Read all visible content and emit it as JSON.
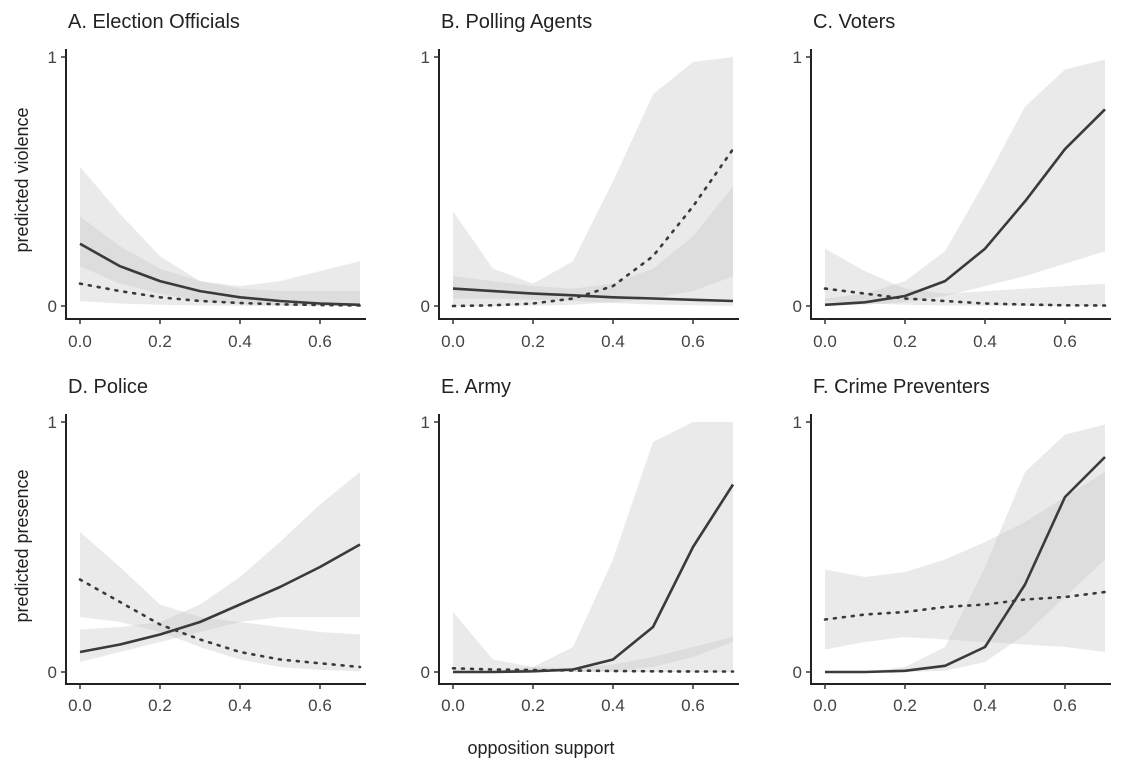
{
  "figure": {
    "ylabel_top": "predicted violence",
    "ylabel_bottom": "predicted presence",
    "xlabel": "opposition support"
  },
  "chart_data": [
    {
      "type": "line",
      "title": "A. Election Officials",
      "xlim": [
        0,
        0.7
      ],
      "ylim": [
        0,
        1
      ],
      "x_ticks": [
        "0.0",
        "0.2",
        "0.4",
        "0.6"
      ],
      "y_ticks": [
        "0",
        "1"
      ],
      "x": [
        0,
        0.1,
        0.2,
        0.3,
        0.4,
        0.5,
        0.6,
        0.7
      ],
      "series": [
        {
          "style": "solid",
          "values": [
            0.25,
            0.16,
            0.1,
            0.06,
            0.035,
            0.02,
            0.01,
            0.005
          ],
          "lower": [
            0.16,
            0.09,
            0.05,
            0.02,
            0.008,
            0.003,
            0.001,
            0.0
          ],
          "upper": [
            0.36,
            0.24,
            0.15,
            0.1,
            0.07,
            0.06,
            0.06,
            0.06
          ]
        },
        {
          "style": "dotted",
          "values": [
            0.09,
            0.06,
            0.035,
            0.02,
            0.012,
            0.007,
            0.004,
            0.002
          ],
          "lower": [
            0.02,
            0.01,
            0.005,
            0.002,
            0.001,
            0.0,
            0.0,
            0.0
          ],
          "upper": [
            0.56,
            0.37,
            0.2,
            0.1,
            0.08,
            0.1,
            0.14,
            0.18
          ]
        }
      ]
    },
    {
      "type": "line",
      "title": "B. Polling Agents",
      "xlim": [
        0,
        0.7
      ],
      "ylim": [
        0,
        1
      ],
      "x_ticks": [
        "0.0",
        "0.2",
        "0.4",
        "0.6"
      ],
      "y_ticks": [
        "0",
        "1"
      ],
      "x": [
        0,
        0.1,
        0.2,
        0.3,
        0.4,
        0.5,
        0.6,
        0.7
      ],
      "series": [
        {
          "style": "solid",
          "values": [
            0.07,
            0.06,
            0.05,
            0.043,
            0.035,
            0.03,
            0.025,
            0.02
          ],
          "lower": [
            0.03,
            0.03,
            0.025,
            0.02,
            0.012,
            0.006,
            0.003,
            0.0
          ],
          "upper": [
            0.12,
            0.1,
            0.08,
            0.07,
            0.09,
            0.15,
            0.28,
            0.48
          ]
        },
        {
          "style": "dotted",
          "values": [
            0.0,
            0.003,
            0.01,
            0.03,
            0.08,
            0.2,
            0.4,
            0.63
          ],
          "lower": [
            0.0,
            0.0,
            0.001,
            0.005,
            0.015,
            0.03,
            0.06,
            0.12
          ],
          "upper": [
            0.38,
            0.15,
            0.09,
            0.18,
            0.5,
            0.85,
            0.98,
            1.0
          ]
        }
      ]
    },
    {
      "type": "line",
      "title": "C. Voters",
      "xlim": [
        0,
        0.7
      ],
      "ylim": [
        0,
        1
      ],
      "x_ticks": [
        "0.0",
        "0.2",
        "0.4",
        "0.6"
      ],
      "y_ticks": [
        "0",
        "1"
      ],
      "x": [
        0,
        0.1,
        0.2,
        0.3,
        0.4,
        0.5,
        0.6,
        0.7
      ],
      "series": [
        {
          "style": "solid",
          "values": [
            0.005,
            0.015,
            0.04,
            0.1,
            0.23,
            0.42,
            0.63,
            0.79
          ],
          "lower": [
            0.0,
            0.005,
            0.015,
            0.04,
            0.08,
            0.12,
            0.17,
            0.22
          ],
          "upper": [
            0.03,
            0.05,
            0.1,
            0.22,
            0.5,
            0.8,
            0.95,
            0.99
          ]
        },
        {
          "style": "dotted",
          "values": [
            0.07,
            0.05,
            0.03,
            0.02,
            0.01,
            0.006,
            0.003,
            0.002
          ],
          "lower": [
            0.02,
            0.01,
            0.005,
            0.002,
            0.001,
            0.0,
            0.0,
            0.0
          ],
          "upper": [
            0.23,
            0.14,
            0.07,
            0.05,
            0.06,
            0.07,
            0.08,
            0.09
          ]
        }
      ]
    },
    {
      "type": "line",
      "title": "D. Police",
      "xlim": [
        0,
        0.7
      ],
      "ylim": [
        0,
        1
      ],
      "x_ticks": [
        "0.0",
        "0.2",
        "0.4",
        "0.6"
      ],
      "y_ticks": [
        "0",
        "1"
      ],
      "x": [
        0,
        0.1,
        0.2,
        0.3,
        0.4,
        0.5,
        0.6,
        0.7
      ],
      "series": [
        {
          "style": "solid",
          "values": [
            0.08,
            0.11,
            0.15,
            0.2,
            0.27,
            0.34,
            0.42,
            0.51
          ],
          "lower": [
            0.04,
            0.08,
            0.12,
            0.16,
            0.2,
            0.22,
            0.22,
            0.22
          ],
          "upper": [
            0.17,
            0.18,
            0.2,
            0.27,
            0.38,
            0.52,
            0.67,
            0.8
          ]
        },
        {
          "style": "dotted",
          "values": [
            0.37,
            0.28,
            0.19,
            0.13,
            0.08,
            0.05,
            0.035,
            0.02
          ],
          "lower": [
            0.22,
            0.2,
            0.16,
            0.1,
            0.05,
            0.02,
            0.008,
            0.003
          ],
          "upper": [
            0.56,
            0.42,
            0.27,
            0.22,
            0.2,
            0.18,
            0.16,
            0.15
          ]
        }
      ]
    },
    {
      "type": "line",
      "title": "E. Army",
      "xlim": [
        0,
        0.7
      ],
      "ylim": [
        0,
        1
      ],
      "x_ticks": [
        "0.0",
        "0.2",
        "0.4",
        "0.6"
      ],
      "y_ticks": [
        "0",
        "1"
      ],
      "x": [
        0,
        0.1,
        0.2,
        0.3,
        0.4,
        0.5,
        0.6,
        0.7
      ],
      "series": [
        {
          "style": "solid",
          "values": [
            0.0,
            0.0,
            0.003,
            0.01,
            0.05,
            0.18,
            0.5,
            0.75
          ],
          "lower": [
            0.0,
            0.0,
            0.0,
            0.0,
            0.005,
            0.02,
            0.06,
            0.12
          ],
          "upper": [
            0.0,
            0.005,
            0.02,
            0.1,
            0.45,
            0.92,
            1.0,
            1.0
          ]
        },
        {
          "style": "dotted",
          "values": [
            0.015,
            0.01,
            0.008,
            0.006,
            0.004,
            0.003,
            0.002,
            0.002
          ],
          "lower": [
            0.0,
            0.0,
            0.0,
            0.0,
            0.0,
            0.0,
            0.0,
            0.0
          ],
          "upper": [
            0.24,
            0.05,
            0.02,
            0.015,
            0.03,
            0.06,
            0.1,
            0.14
          ]
        }
      ]
    },
    {
      "type": "line",
      "title": "F. Crime Preventers",
      "xlim": [
        0,
        0.7
      ],
      "ylim": [
        0,
        1
      ],
      "x_ticks": [
        "0.0",
        "0.2",
        "0.4",
        "0.6"
      ],
      "y_ticks": [
        "0",
        "1"
      ],
      "x": [
        0,
        0.1,
        0.2,
        0.3,
        0.4,
        0.5,
        0.6,
        0.7
      ],
      "series": [
        {
          "style": "solid",
          "values": [
            0.0,
            0.0,
            0.005,
            0.025,
            0.1,
            0.35,
            0.7,
            0.86
          ],
          "lower": [
            0.0,
            0.0,
            0.0,
            0.005,
            0.04,
            0.15,
            0.3,
            0.45
          ],
          "upper": [
            0.0,
            0.002,
            0.02,
            0.1,
            0.42,
            0.8,
            0.95,
            0.99
          ]
        },
        {
          "style": "dotted",
          "values": [
            0.21,
            0.23,
            0.24,
            0.26,
            0.27,
            0.29,
            0.3,
            0.32
          ],
          "lower": [
            0.09,
            0.12,
            0.14,
            0.13,
            0.12,
            0.11,
            0.1,
            0.08
          ],
          "upper": [
            0.41,
            0.38,
            0.4,
            0.45,
            0.52,
            0.6,
            0.7,
            0.8
          ]
        }
      ]
    }
  ]
}
